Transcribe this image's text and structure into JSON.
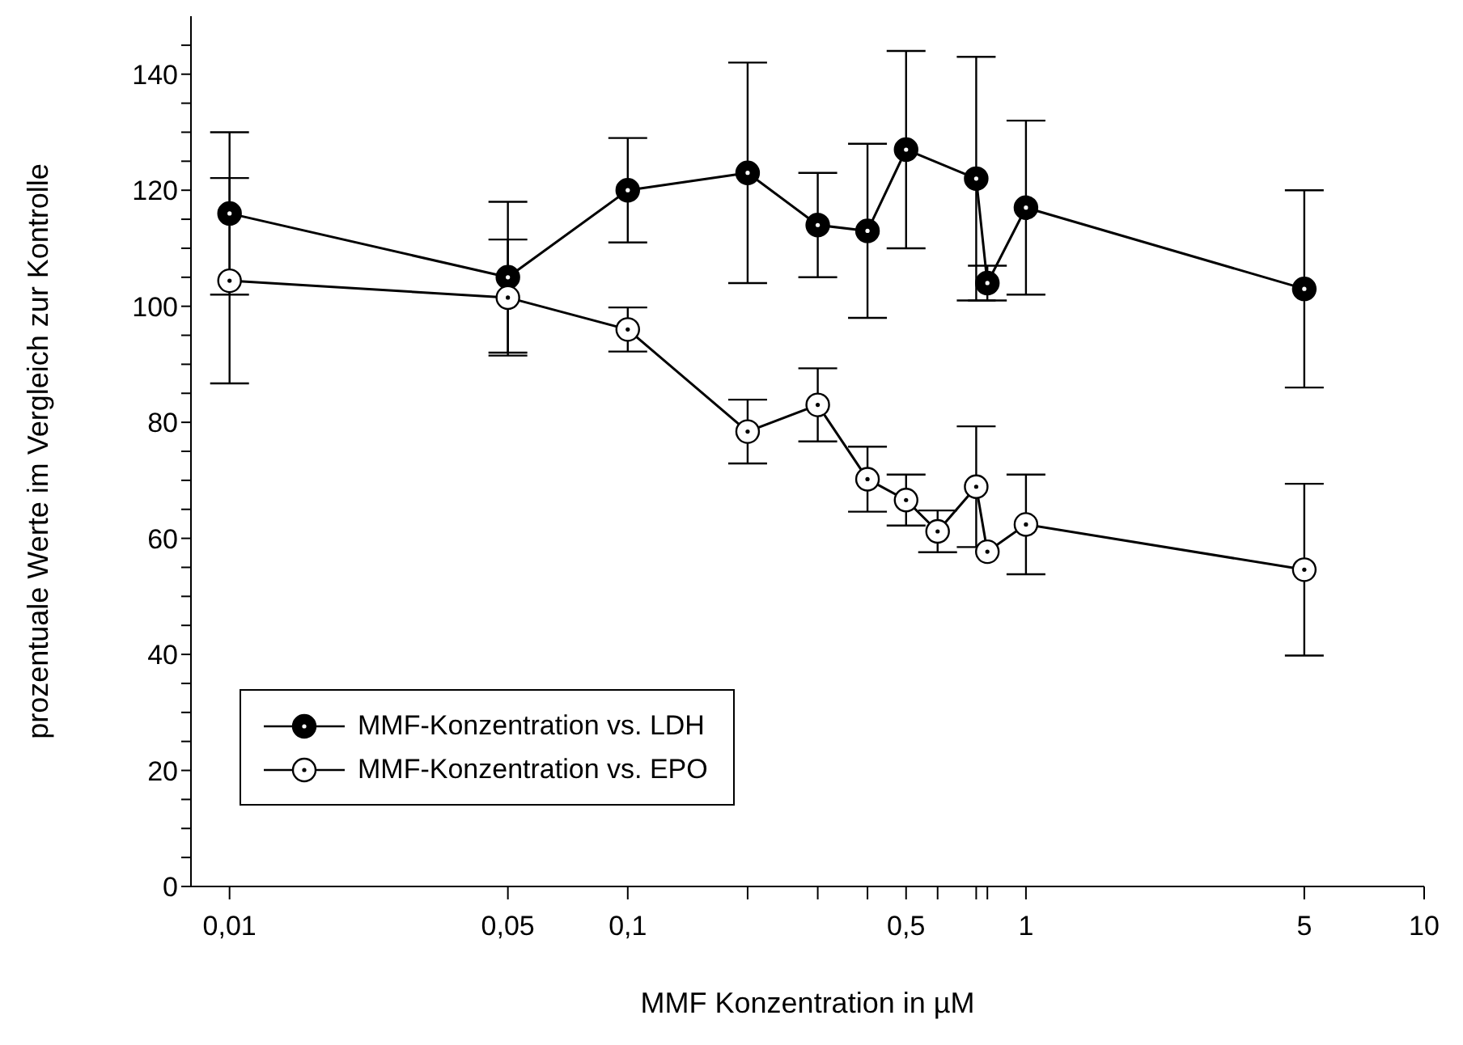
{
  "chart_data": {
    "type": "line",
    "xlabel": "MMF Konzentration in µM",
    "ylabel": "prozentuale Werte im Vergleich zur Kontrolle",
    "log": "x",
    "xlim": [
      0.008,
      10
    ],
    "xticks": [
      {
        "value": 0.01,
        "label": "0,01"
      },
      {
        "value": 0.05,
        "label": "0,05"
      },
      {
        "value": 0.1,
        "label": "0,1"
      },
      {
        "value": 0.2,
        "label": null
      },
      {
        "value": 0.3,
        "label": null
      },
      {
        "value": 0.4,
        "label": null
      },
      {
        "value": 0.5,
        "label": "0,5"
      },
      {
        "value": 0.6,
        "label": null
      },
      {
        "value": 0.75,
        "label": null
      },
      {
        "value": 0.8,
        "label": null
      },
      {
        "value": 1,
        "label": "1"
      },
      {
        "value": 5,
        "label": "5"
      },
      {
        "value": 10,
        "label": "10"
      }
    ],
    "ylim": [
      0,
      150
    ],
    "yticks": [
      0,
      {
        "value": 5,
        "label": null
      },
      {
        "value": 10,
        "label": null
      },
      {
        "value": 15,
        "label": null
      },
      20,
      {
        "value": 25,
        "label": null
      },
      {
        "value": 30,
        "label": null
      },
      {
        "value": 35,
        "label": null
      },
      40,
      {
        "value": 45,
        "label": null
      },
      {
        "value": 50,
        "label": null
      },
      {
        "value": 55,
        "label": null
      },
      60,
      {
        "value": 65,
        "label": null
      },
      {
        "value": 70,
        "label": null
      },
      {
        "value": 75,
        "label": null
      },
      80,
      {
        "value": 85,
        "label": null
      },
      {
        "value": 90,
        "label": null
      },
      {
        "value": 95,
        "label": null
      },
      100,
      {
        "value": 105,
        "label": null
      },
      {
        "value": 110,
        "label": null
      },
      {
        "value": 115,
        "label": null
      },
      120,
      {
        "value": 125,
        "label": null
      },
      {
        "value": 130,
        "label": null
      },
      {
        "value": 135,
        "label": null
      },
      140,
      {
        "value": 145,
        "label": null
      }
    ],
    "x": [
      0.01,
      0.05,
      0.1,
      0.2,
      0.3,
      0.4,
      0.5,
      0.6,
      0.75,
      0.8,
      1,
      5
    ],
    "series": [
      {
        "name": "MMF-Konzentration vs. LDH",
        "color": "#000000",
        "x": [
          0.01,
          0.05,
          0.1,
          0.2,
          0.3,
          0.4,
          0.5,
          0.75,
          0.8,
          1,
          5
        ],
        "values": [
          116,
          105,
          120,
          123,
          114,
          113,
          127,
          122,
          104,
          117,
          103
        ],
        "errors": [
          14,
          13,
          9,
          19,
          9,
          15,
          17,
          21,
          3,
          15,
          17
        ]
      },
      {
        "name": "MMF-Konzentration vs. EPO",
        "color": "#ffffff",
        "values": [
          104.4,
          101.5,
          96,
          78.4,
          83,
          70.2,
          66.6,
          61.2,
          68.9,
          57.7,
          62.4,
          54.6
        ],
        "errors": [
          17.7,
          10,
          3.8,
          5.5,
          6.3,
          5.6,
          4.4,
          3.6,
          10.4,
          null,
          8.6,
          14.8
        ]
      }
    ],
    "marker": "circle",
    "line_style": "solid",
    "grid": false,
    "legend": "bottom left"
  }
}
